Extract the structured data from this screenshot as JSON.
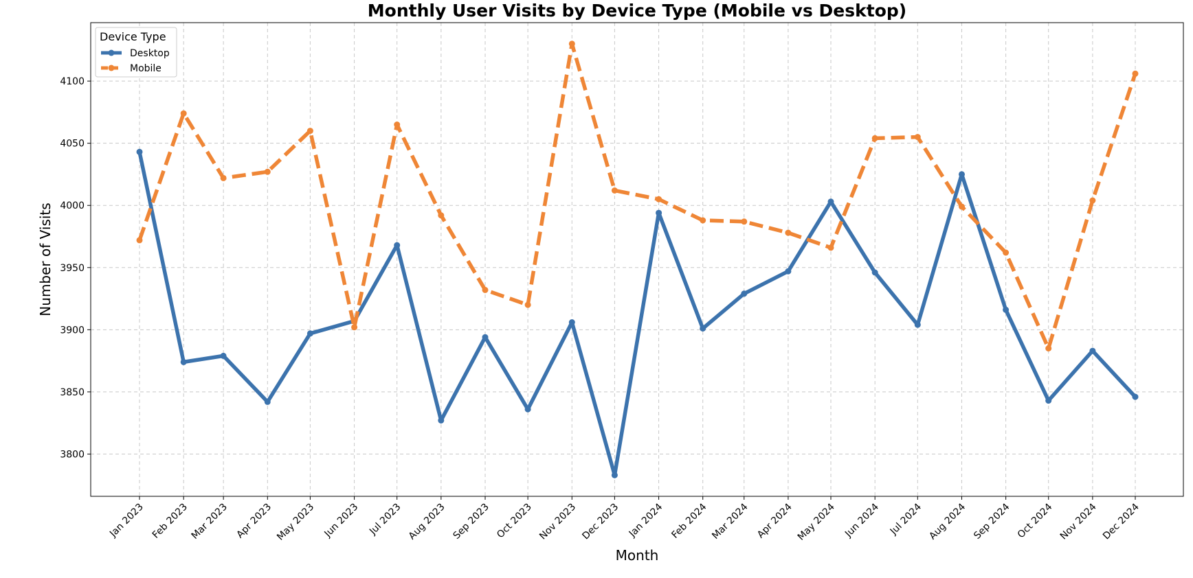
{
  "chart_data": {
    "type": "line",
    "title": "Monthly User Visits by Device Type (Mobile vs Desktop)",
    "xlabel": "Month",
    "ylabel": "Number of Visits",
    "categories": [
      "Jan 2023",
      "Feb 2023",
      "Mar 2023",
      "Apr 2023",
      "May 2023",
      "Jun 2023",
      "Jul 2023",
      "Aug 2023",
      "Sep 2023",
      "Oct 2023",
      "Nov 2023",
      "Dec 2023",
      "Jan 2024",
      "Feb 2024",
      "Mar 2024",
      "Apr 2024",
      "May 2024",
      "Jun 2024",
      "Jul 2024",
      "Aug 2024",
      "Sep 2024",
      "Oct 2024",
      "Nov 2024",
      "Dec 2024"
    ],
    "x_positions_days": [
      0,
      31,
      59,
      90,
      120,
      151,
      181,
      212,
      243,
      273,
      304,
      334,
      365,
      396,
      425,
      456,
      486,
      517,
      547,
      578,
      609,
      639,
      670,
      700
    ],
    "ylim": [
      3766,
      4147
    ],
    "yticks": [
      3800,
      3850,
      3900,
      3950,
      4000,
      4050,
      4100
    ],
    "grid": true,
    "legend": {
      "title": "Device Type",
      "placement": "top-left"
    },
    "series": [
      {
        "name": "Desktop",
        "color": "#3c73ad",
        "line_style": "solid",
        "values": [
          4043,
          3874,
          3879,
          3842,
          3897,
          3907,
          3968,
          3827,
          3894,
          3836,
          3906,
          3783,
          3994,
          3901,
          3929,
          3947,
          4003,
          3946,
          3904,
          4025,
          3916,
          3843,
          3883,
          3846
        ]
      },
      {
        "name": "Mobile",
        "color": "#ef8636",
        "line_style": "dashed",
        "values": [
          3972,
          4074,
          4022,
          4027,
          4060,
          3902,
          4065,
          3992,
          3932,
          3920,
          4130,
          4012,
          4005,
          3988,
          3987,
          3978,
          3966,
          4054,
          4055,
          3999,
          3962,
          3885,
          4004,
          4106
        ]
      }
    ]
  }
}
